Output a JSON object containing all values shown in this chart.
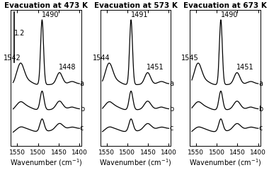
{
  "panels": [
    {
      "title": "Evacuation at 473 K",
      "peak1": 1542,
      "peak2": 1490,
      "peak3": 1448,
      "label1": "1542",
      "label2": "1490",
      "label3": "1448",
      "has_scalebar": true
    },
    {
      "title": "Evacuation at 573 K",
      "peak1": 1544,
      "peak2": 1491,
      "peak3": 1451,
      "label1": "1544",
      "label2": "1491",
      "label3": "1451",
      "has_scalebar": false
    },
    {
      "title": "Evacuation at 673 K",
      "peak1": 1545,
      "peak2": 1490,
      "peak3": 1451,
      "label1": "1545",
      "label2": "1490",
      "label3": "1451",
      "has_scalebar": false
    }
  ],
  "xmin": 1400,
  "xmax": 1560,
  "scalebar_label": "1.2",
  "xlabel": "Wavenumber (cm$^{-1}$)",
  "abc_labels": [
    "a",
    "b",
    "c"
  ],
  "line_color": "#000000",
  "bg_color": "#ffffff",
  "title_fontsize": 7.5,
  "label_fontsize": 7.0,
  "tick_fontsize": 6.5,
  "line_width": 0.9
}
